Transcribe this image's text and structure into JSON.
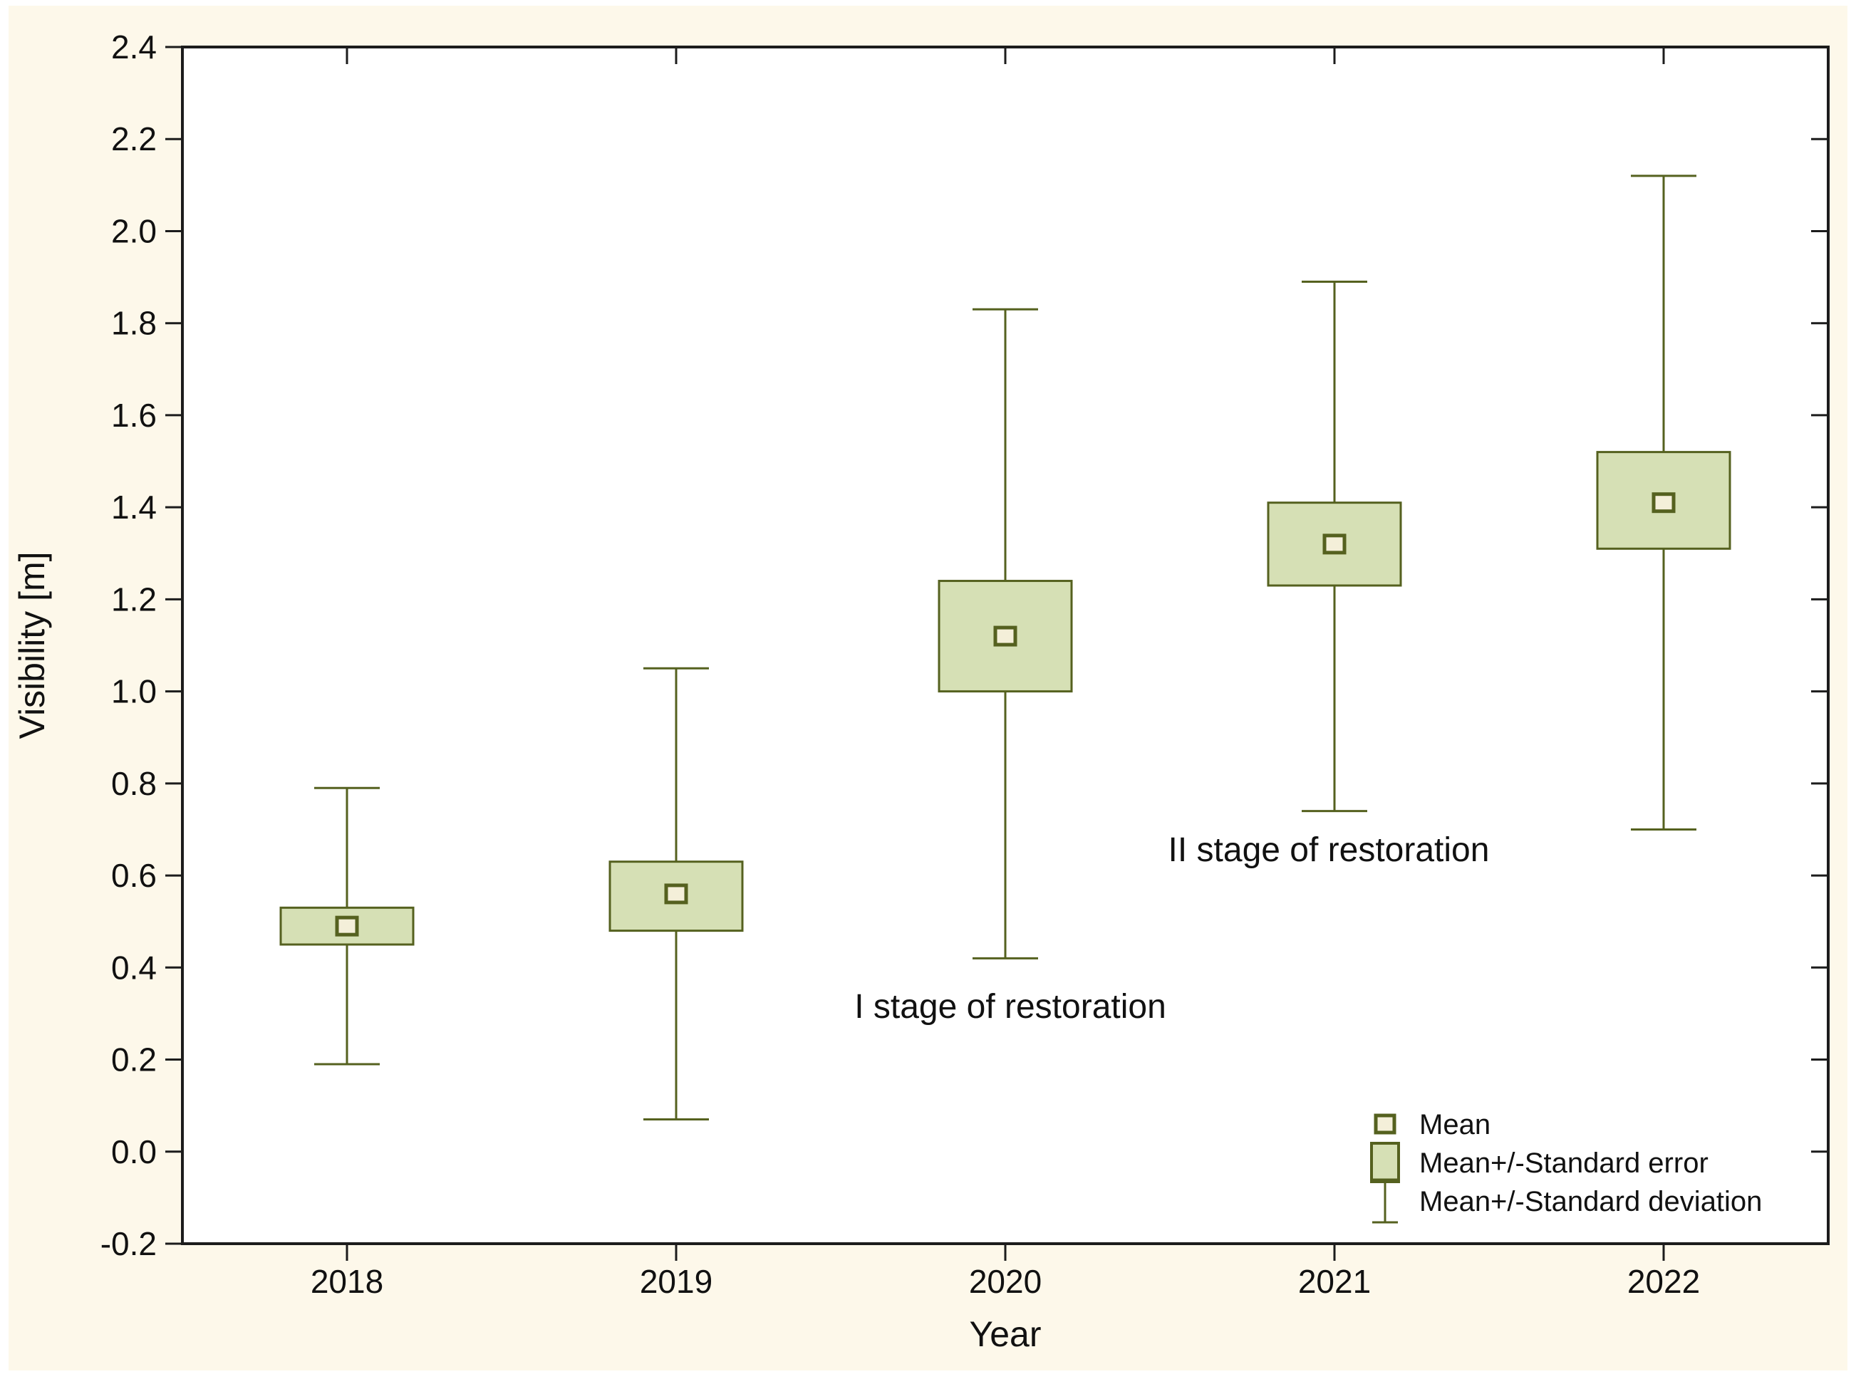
{
  "chart_data": {
    "type": "box-whisker",
    "title": "",
    "xlabel": "Year",
    "ylabel": "Visibility [m]",
    "categories": [
      "2018",
      "2019",
      "2020",
      "2021",
      "2022"
    ],
    "series": [
      {
        "name": "Mean",
        "values": [
          0.49,
          0.56,
          1.12,
          1.32,
          1.41
        ]
      },
      {
        "name": "Mean-Standard error",
        "values": [
          0.45,
          0.48,
          1.0,
          1.23,
          1.31
        ]
      },
      {
        "name": "Mean+Standard error",
        "values": [
          0.53,
          0.63,
          1.24,
          1.41,
          1.52
        ]
      },
      {
        "name": "Mean-Standard deviation",
        "values": [
          0.19,
          0.07,
          0.42,
          0.74,
          0.7
        ]
      },
      {
        "name": "Mean+Standard deviation",
        "values": [
          0.79,
          1.05,
          1.83,
          1.89,
          2.12
        ]
      }
    ],
    "ylim": [
      -0.2,
      2.4
    ],
    "ytick_step": 0.2,
    "ytick_labels": [
      "2.4",
      "2.2",
      "2.0",
      "1.8",
      "1.6",
      "1.4",
      "1.2",
      "1.0",
      "0.8",
      "0.6",
      "0.4",
      "0.2",
      "0.0",
      "-0.2"
    ],
    "xtick_labels": [
      "2018",
      "2019",
      "2020",
      "2021",
      "2022"
    ],
    "grid": false,
    "legend_position": "bottom-right-inside",
    "legend": [
      {
        "icon": "mean-marker-icon",
        "label": "Mean"
      },
      {
        "icon": "se-box-icon",
        "label": "Mean+/-Standard error"
      },
      {
        "icon": "sd-whisker-icon",
        "label": "Mean+/-Standard deviation"
      }
    ],
    "annotations": [
      {
        "text": "I stage of restoration",
        "cx": 1418,
        "cy": 1412
      },
      {
        "text": "II stage of restoration",
        "cx": 1865,
        "cy": 1192
      }
    ],
    "colors": {
      "page_background": "#fdf8ea",
      "plot_background": "#ffffff",
      "box_fill": "#d6e0b5",
      "box_stroke": "#55611f",
      "mean_fill": "#f4efd9",
      "frame": "#1c1c1c",
      "text": "#111111"
    }
  }
}
